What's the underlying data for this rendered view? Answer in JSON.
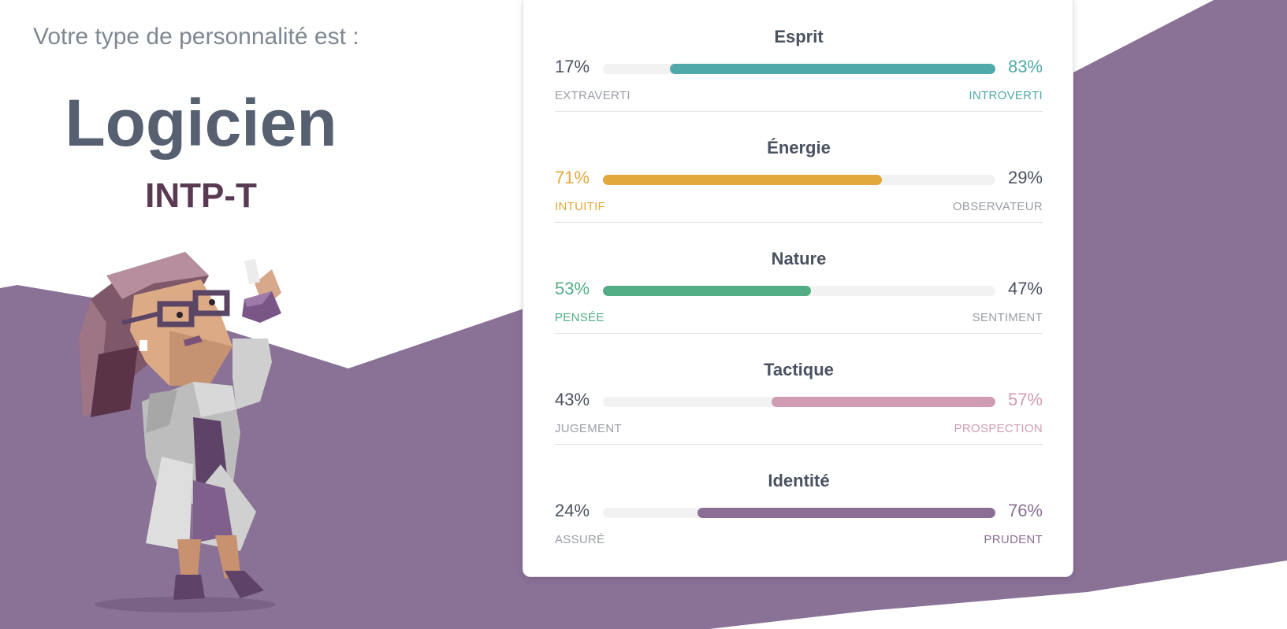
{
  "intro_text": "Votre type de personnalité est :",
  "type_name": "Logicien",
  "type_code": "INTP-T",
  "illustration": {
    "subject": "scientist-character-icon"
  },
  "colors": {
    "background_purple": "#8a7196",
    "muted_text": "#4a5160",
    "muted_label": "#9a9ea6",
    "track": "#f2f2f2"
  },
  "traits": [
    {
      "title": "Esprit",
      "left_pct": "17%",
      "right_pct": "83%",
      "left_label": "EXTRAVERTI",
      "right_label": "INTROVERTI",
      "dominant": "right",
      "value": 83,
      "color": "#4ea9a8"
    },
    {
      "title": "Énergie",
      "left_pct": "71%",
      "right_pct": "29%",
      "left_label": "INTUITIF",
      "right_label": "OBSERVATEUR",
      "dominant": "left",
      "value": 71,
      "color": "#e3a83c"
    },
    {
      "title": "Nature",
      "left_pct": "53%",
      "right_pct": "47%",
      "left_label": "PENSÉE",
      "right_label": "SENTIMENT",
      "dominant": "left",
      "value": 53,
      "color": "#53ad84"
    },
    {
      "title": "Tactique",
      "left_pct": "43%",
      "right_pct": "57%",
      "left_label": "JUGEMENT",
      "right_label": "PROSPECTION",
      "dominant": "right",
      "value": 57,
      "color": "#d09cb4"
    },
    {
      "title": "Identité",
      "left_pct": "24%",
      "right_pct": "76%",
      "left_label": "ASSURÉ",
      "right_label": "PRUDENT",
      "dominant": "right",
      "value": 76,
      "color": "#8a6e96"
    }
  ]
}
